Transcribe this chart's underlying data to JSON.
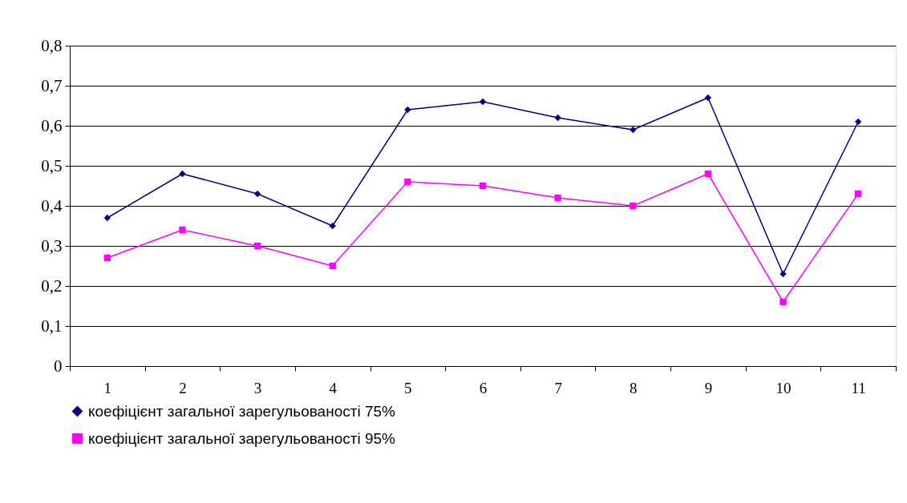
{
  "chart_data": {
    "type": "line",
    "categories": [
      "1",
      "2",
      "3",
      "4",
      "5",
      "6",
      "7",
      "8",
      "9",
      "10",
      "11"
    ],
    "series": [
      {
        "name": "коефіцієнт загальної зарегульованості 75%",
        "color": "#000080",
        "marker": "diamond",
        "values": [
          0.37,
          0.48,
          0.43,
          0.35,
          0.64,
          0.66,
          0.62,
          0.59,
          0.67,
          0.23,
          0.61
        ]
      },
      {
        "name": "коефіцієнт загальної зарегульованості 95%",
        "color": "#ff00ff",
        "marker": "square",
        "values": [
          0.27,
          0.34,
          0.3,
          0.25,
          0.46,
          0.45,
          0.42,
          0.4,
          0.48,
          0.16,
          0.43
        ]
      }
    ],
    "ylim": [
      0,
      0.8
    ],
    "yticks": [
      0,
      {
        "value": 0.1,
        "label": "0,1"
      },
      {
        "value": 0.2,
        "label": "0,2"
      },
      {
        "value": 0.3,
        "label": "0,3"
      },
      {
        "value": 0.4,
        "label": "0,4"
      },
      {
        "value": 0.5,
        "label": "0,5"
      },
      {
        "value": 0.6,
        "label": "0,6"
      },
      {
        "value": 0.7,
        "label": "0,7"
      },
      {
        "value": 0.8,
        "label": "0,8"
      }
    ],
    "grid": "y",
    "legend": "bottom",
    "line_style": "solid"
  }
}
